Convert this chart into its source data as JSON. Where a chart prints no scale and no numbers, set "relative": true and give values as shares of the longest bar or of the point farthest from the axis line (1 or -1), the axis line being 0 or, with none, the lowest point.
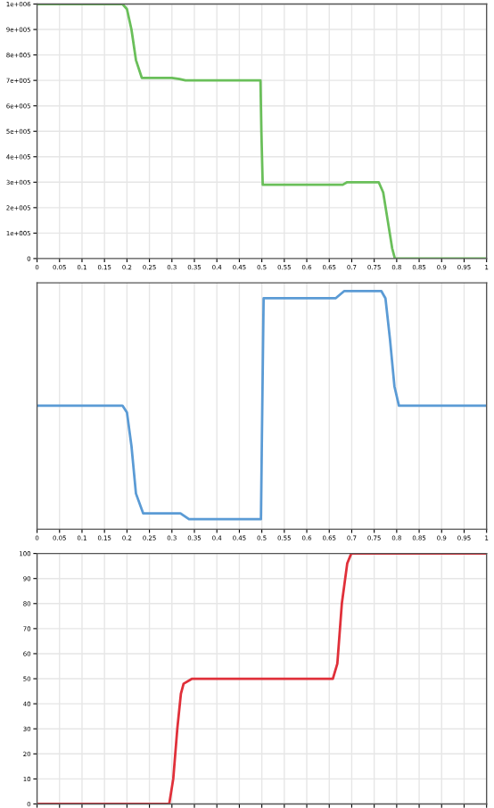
{
  "chart_data": [
    {
      "type": "line",
      "x": [
        0,
        0.19,
        0.2,
        0.21,
        0.22,
        0.233,
        0.25,
        0.3,
        0.317,
        0.33,
        0.4,
        0.497,
        0.499,
        0.502,
        0.55,
        0.68,
        0.69,
        0.76,
        0.77,
        0.78,
        0.79,
        0.796,
        0.85,
        1
      ],
      "series": [
        {
          "color": "#6abf5a",
          "values": [
            1000000,
            1000000,
            980000,
            900000,
            780000,
            710000,
            710000,
            710000,
            705000,
            700000,
            700000,
            700000,
            500000,
            290000,
            290000,
            290000,
            300000,
            300000,
            260000,
            150000,
            40000,
            0,
            0,
            0
          ]
        }
      ],
      "xlim": [
        0,
        1
      ],
      "xticks": [
        0,
        0.05,
        0.1,
        0.15,
        0.2,
        0.25,
        0.3,
        0.35,
        0.4,
        0.45,
        0.5,
        0.55,
        0.6,
        0.65,
        0.7,
        0.75,
        0.8,
        0.85,
        0.9,
        0.95,
        1
      ],
      "ylim": [
        0,
        1000000
      ],
      "yticks": [
        0,
        {
          "value": 100000,
          "label": "1e+005"
        },
        {
          "value": 200000,
          "label": "2e+005"
        },
        {
          "value": 300000,
          "label": "3e+005"
        },
        {
          "value": 400000,
          "label": "4e+005"
        },
        {
          "value": 500000,
          "label": "5e+005"
        },
        {
          "value": 600000,
          "label": "6e+005"
        },
        {
          "value": 700000,
          "label": "7e+005"
        },
        {
          "value": 800000,
          "label": "8e+005"
        },
        {
          "value": 900000,
          "label": "9e+005"
        },
        {
          "value": 1000000,
          "label": "1e+006"
        }
      ],
      "grid": true
    },
    {
      "type": "line",
      "relative": true,
      "x": [
        0,
        0.19,
        0.2,
        0.21,
        0.22,
        0.236,
        0.25,
        0.319,
        0.338,
        0.4,
        0.498,
        0.504,
        0.55,
        0.664,
        0.683,
        0.766,
        0.775,
        0.785,
        0.795,
        0.805,
        0.85,
        1
      ],
      "series": [
        {
          "color": "#5b9bd5",
          "values": [
            0.519,
            0.519,
            0.49,
            0.35,
            0.15,
            0.067,
            0.067,
            0.067,
            0.042,
            0.042,
            0.042,
            0.97,
            0.97,
            0.97,
            1,
            1,
            0.97,
            0.8,
            0.6,
            0.519,
            0.519,
            0.519
          ]
        }
      ],
      "xlim": [
        0,
        1
      ],
      "xticks": [
        0,
        0.05,
        0.1,
        0.15,
        0.2,
        0.25,
        0.3,
        0.35,
        0.4,
        0.45,
        0.5,
        0.55,
        0.6,
        0.65,
        0.7,
        0.75,
        0.8,
        0.85,
        0.9,
        0.95,
        1
      ],
      "grid": true
    },
    {
      "type": "line",
      "x": [
        0,
        0.294,
        0.303,
        0.312,
        0.32,
        0.326,
        0.345,
        0.5,
        0.658,
        0.668,
        0.678,
        0.69,
        0.699,
        0.75,
        1
      ],
      "series": [
        {
          "color": "#e0303a",
          "values": [
            0,
            0,
            10,
            30,
            44,
            48,
            50,
            50,
            50,
            56,
            80,
            96,
            100,
            100,
            100
          ]
        }
      ],
      "xlim": [
        0,
        1
      ],
      "xticks": [
        0,
        0.05,
        0.1,
        0.15,
        0.2,
        0.25,
        0.3,
        0.35,
        0.4,
        0.45,
        0.5,
        0.55,
        0.6,
        0.65,
        0.7,
        0.75,
        0.8,
        0.85,
        0.9,
        0.95,
        1
      ],
      "ylim": [
        0,
        100
      ],
      "yticks": [
        0,
        10,
        20,
        30,
        40,
        50,
        60,
        70,
        80,
        90,
        100
      ],
      "grid": true,
      "tick_labels": "y"
    }
  ]
}
